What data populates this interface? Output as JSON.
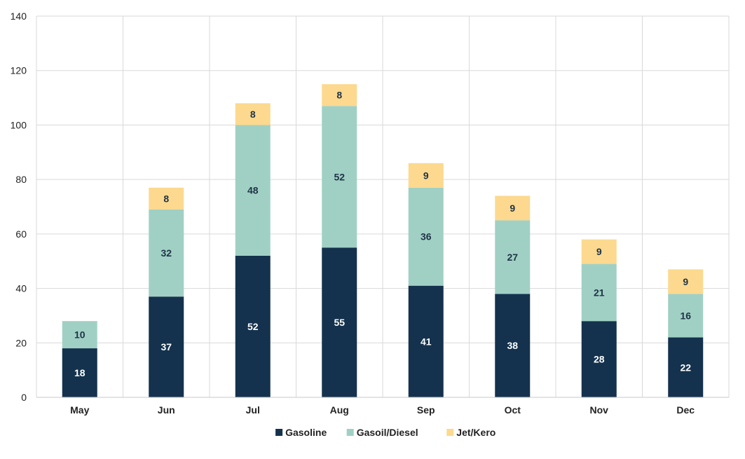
{
  "chart_data": {
    "type": "bar",
    "stacked": true,
    "categories": [
      "May",
      "Jun",
      "Jul",
      "Aug",
      "Sep",
      "Oct",
      "Nov",
      "Dec"
    ],
    "series": [
      {
        "name": "Gasoline",
        "color": "#14324D",
        "label_color": "#ffffff",
        "values": [
          18,
          37,
          52,
          55,
          41,
          38,
          28,
          22
        ]
      },
      {
        "name": "Gasoil/Diesel",
        "color": "#A0D0C4",
        "label_color": "#1f3347",
        "values": [
          10,
          32,
          48,
          52,
          36,
          27,
          21,
          16
        ]
      },
      {
        "name": "Jet/Kero",
        "color": "#FCD98E",
        "label_color": "#1f3347",
        "values": [
          null,
          8,
          8,
          8,
          9,
          9,
          9,
          9
        ]
      }
    ],
    "ylim": [
      0,
      140
    ],
    "yticks": [
      0,
      20,
      40,
      60,
      80,
      100,
      120,
      140
    ],
    "grid": true,
    "legend_position": "bottom-center",
    "title": "",
    "xlabel": "",
    "ylabel": ""
  }
}
